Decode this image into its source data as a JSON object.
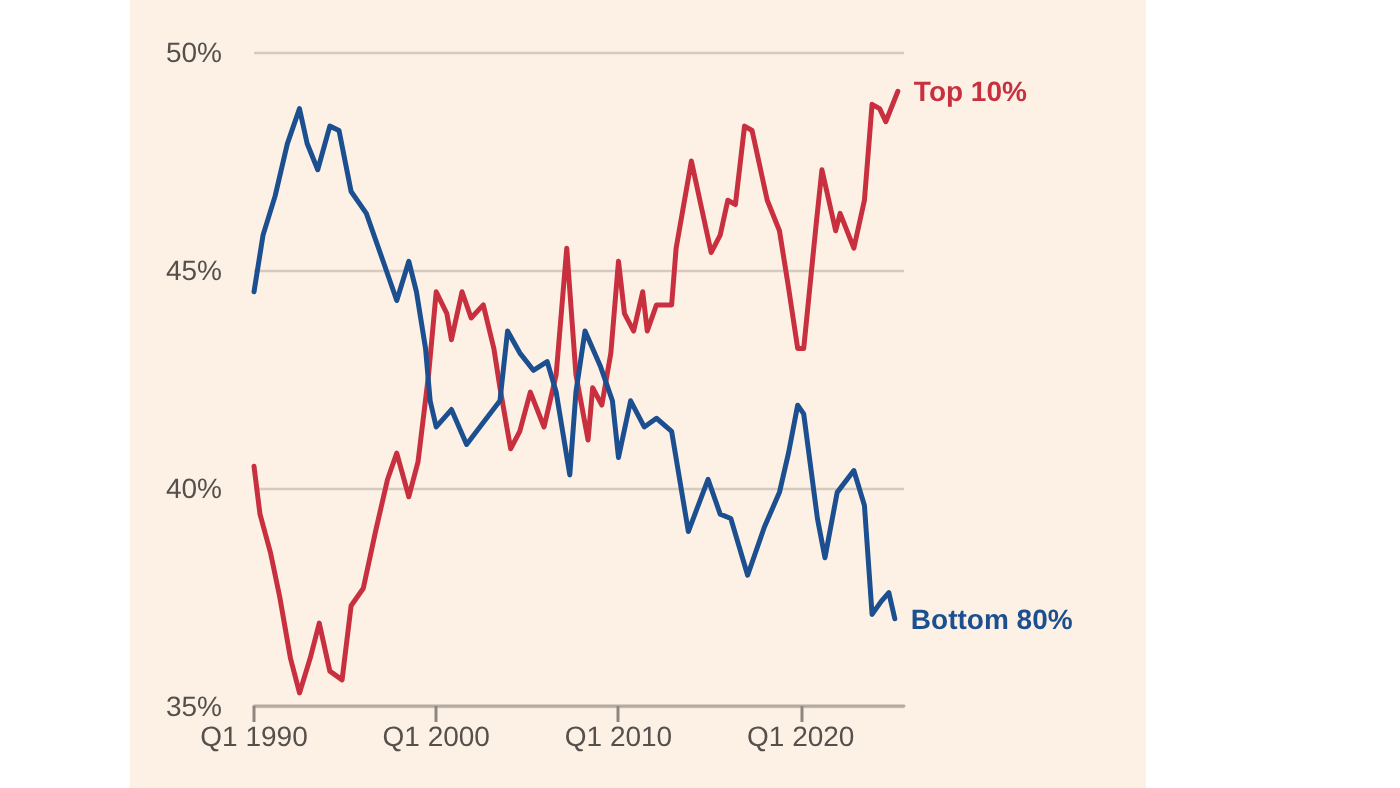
{
  "chart_data": {
    "type": "line",
    "line_style": "solid",
    "marker": "none",
    "grid": "y",
    "legend": false,
    "xlim": [
      "1990-01",
      "2025-09"
    ],
    "xticks": [
      {
        "value": "1990-01",
        "label": "Q1 1990"
      },
      {
        "value": "2000-01",
        "label": "Q1 2000"
      },
      {
        "value": "2010-01",
        "label": "Q1 2010"
      },
      {
        "value": "2020-01",
        "label": "Q1 2020"
      }
    ],
    "ylim": [
      35,
      50
    ],
    "yticks": [
      {
        "value": 35,
        "label": "35%"
      },
      {
        "value": 40,
        "label": "40%"
      },
      {
        "value": 45,
        "label": "45%"
      },
      {
        "value": 50,
        "label": "50%"
      }
    ],
    "series": [
      {
        "name": "Top 10%",
        "color": "#c8303f",
        "x": [
          "1990-01",
          "1990-05",
          "1990-12",
          "1991-06",
          "1992-01",
          "1992-07",
          "1993-02",
          "1993-08",
          "1994-03",
          "1994-11",
          "1995-05",
          "1996-01",
          "1996-09",
          "1997-05",
          "1997-11",
          "1998-07",
          "1999-01",
          "1999-08",
          "2000-01",
          "2000-08",
          "2000-11",
          "2001-06",
          "2001-12",
          "2002-08",
          "2003-03",
          "2003-07",
          "2004-02",
          "2004-08",
          "2005-03",
          "2005-12",
          "2006-08",
          "2007-03",
          "2007-09",
          "2008-05",
          "2008-08",
          "2009-02",
          "2009-08",
          "2010-01",
          "2010-05",
          "2010-11",
          "2011-05",
          "2011-08",
          "2012-02",
          "2012-12",
          "2013-03",
          "2014-01",
          "2015-02",
          "2015-08",
          "2016-01",
          "2016-06",
          "2016-12",
          "2017-05",
          "2018-03",
          "2018-11",
          "2019-05",
          "2019-11",
          "2020-03",
          "2020-11",
          "2021-03",
          "2021-12",
          "2022-03",
          "2022-12",
          "2023-07",
          "2023-12",
          "2024-05",
          "2024-09",
          "2025-05"
        ],
        "values": [
          40.5,
          39.4,
          38.5,
          37.5,
          36.1,
          35.3,
          36.1,
          36.9,
          35.8,
          35.6,
          37.3,
          37.7,
          39,
          40.2,
          40.8,
          39.8,
          40.6,
          42.6,
          44.5,
          44,
          43.4,
          44.5,
          43.9,
          44.2,
          43.2,
          42.3,
          40.9,
          41.3,
          42.2,
          41.4,
          42.6,
          45.5,
          42.6,
          41.1,
          42.3,
          41.9,
          43.1,
          45.2,
          44,
          43.6,
          44.5,
          43.6,
          44.2,
          44.2,
          45.5,
          47.5,
          45.4,
          45.8,
          46.6,
          46.5,
          48.3,
          48.2,
          46.6,
          45.9,
          44.6,
          43.2,
          43.2,
          46,
          47.3,
          45.9,
          46.3,
          45.5,
          46.6,
          48.8,
          48.7,
          48.4,
          49.1
        ]
      },
      {
        "name": "Bottom 80%",
        "color": "#1c4f90",
        "x": [
          "1990-01",
          "1990-07",
          "1991-03",
          "1991-11",
          "1992-07",
          "1992-12",
          "1993-07",
          "1994-03",
          "1994-09",
          "1995-05",
          "1996-03",
          "1997-02",
          "1997-11",
          "1998-07",
          "1998-12",
          "1999-06",
          "1999-09",
          "2000-01",
          "2000-11",
          "2001-09",
          "2002-08",
          "2003-07",
          "2003-12",
          "2004-08",
          "2005-05",
          "2006-02",
          "2006-08",
          "2007-05",
          "2007-09",
          "2008-03",
          "2009-01",
          "2009-09",
          "2010-01",
          "2010-09",
          "2011-06",
          "2012-02",
          "2012-12",
          "2013-11",
          "2014-12",
          "2015-08",
          "2016-03",
          "2017-02",
          "2018-01",
          "2018-11",
          "2019-05",
          "2019-11",
          "2020-03",
          "2020-12",
          "2021-05",
          "2022-01",
          "2022-12",
          "2023-07",
          "2023-12",
          "2024-06",
          "2024-11",
          "2025-03"
        ],
        "values": [
          44.5,
          45.8,
          46.7,
          47.9,
          48.7,
          47.9,
          47.3,
          48.3,
          48.2,
          46.8,
          46.3,
          45.2,
          44.3,
          45.2,
          44.5,
          43.2,
          42,
          41.4,
          41.8,
          41,
          41.5,
          42,
          43.6,
          43.1,
          42.7,
          42.9,
          42.2,
          40.3,
          42.2,
          43.6,
          42.8,
          42,
          40.7,
          42,
          41.4,
          41.6,
          41.3,
          39,
          40.2,
          39.4,
          39.3,
          38,
          39.1,
          39.9,
          40.8,
          41.9,
          41.7,
          39.3,
          38.4,
          39.9,
          40.4,
          39.6,
          37.1,
          37.4,
          37.6,
          37
        ]
      }
    ]
  }
}
